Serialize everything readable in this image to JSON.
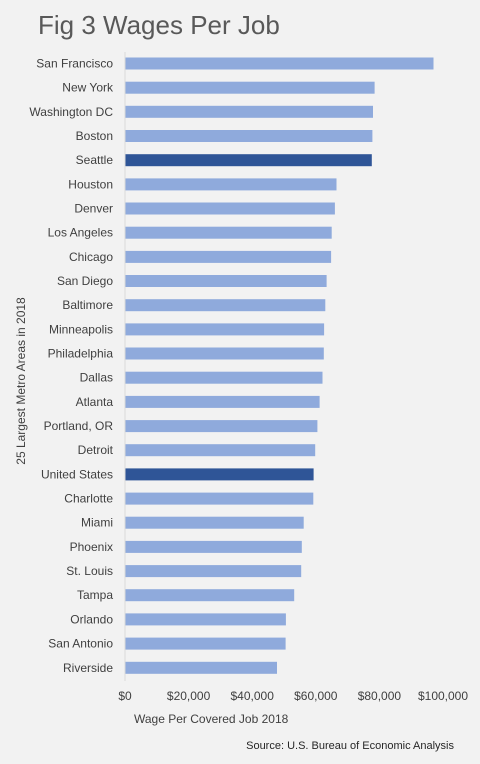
{
  "chart_data": {
    "type": "bar",
    "orientation": "horizontal",
    "title": "Fig 3 Wages Per Job",
    "ylabel": "25 Largest Metro Areas in 2018",
    "xlabel": "Wage Per Covered Job 2018",
    "xlim": [
      0,
      100000
    ],
    "x_ticks": [
      0,
      20000,
      40000,
      60000,
      80000,
      100000
    ],
    "x_tick_labels": [
      "$0",
      "$20,000",
      "$40,000",
      "$60,000",
      "$80,000",
      "$100,000"
    ],
    "grid": false,
    "categories": [
      "San Francisco",
      "New York",
      "Washington DC",
      "Boston",
      "Seattle",
      "Houston",
      "Denver",
      "Los Angeles",
      "Chicago",
      "San Diego",
      "Baltimore",
      "Minneapolis",
      "Philadelphia",
      "Dallas",
      "Atlanta",
      "Portland, OR",
      "Detroit",
      "United States",
      "Charlotte",
      "Miami",
      "Phoenix",
      "St. Louis",
      "Tampa",
      "Orlando",
      "San Antonio",
      "Riverside"
    ],
    "values": [
      97000,
      78500,
      78000,
      77800,
      77600,
      66500,
      66000,
      65000,
      64800,
      63400,
      63000,
      62600,
      62500,
      62100,
      61200,
      60500,
      59800,
      59300,
      59200,
      56200,
      55600,
      55400,
      53200,
      50600,
      50500,
      47800
    ],
    "highlighted": [
      "Seattle",
      "United States"
    ],
    "colors": {
      "default": "#8faadc",
      "highlight": "#2f5597",
      "background": "#f2f2f2",
      "axis": "#d9d9d9"
    },
    "source": "Source: U.S. Bureau of Economic Analysis"
  }
}
